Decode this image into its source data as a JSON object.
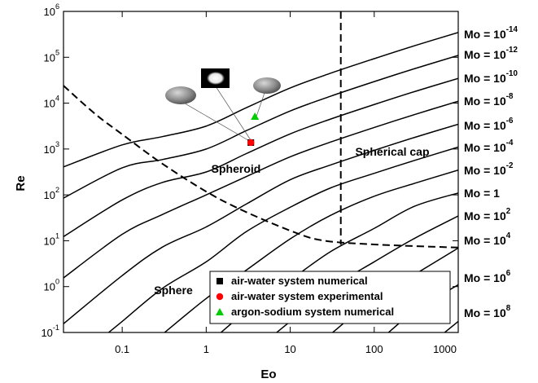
{
  "chart_data": {
    "type": "line",
    "xscale": "log",
    "yscale": "log",
    "x_label": "Eo",
    "y_label": "Re",
    "xlim": [
      0.02,
      1000
    ],
    "ylim": [
      0.1,
      1000000
    ],
    "xticks": [
      0.1,
      1,
      10,
      100,
      1000
    ],
    "yticks": [
      {
        "value": 0.1,
        "label": "10^-1"
      },
      {
        "value": 1,
        "label": "10^0"
      },
      {
        "value": 10,
        "label": "10^1"
      },
      {
        "value": 100,
        "label": "10^2"
      },
      {
        "value": 1000,
        "label": "10^3"
      },
      {
        "value": 10000,
        "label": "10^4"
      },
      {
        "value": 100000,
        "label": "10^5"
      },
      {
        "value": 1000000,
        "label": "10^6"
      }
    ],
    "series": [
      {
        "name": "Mo = 10^-14",
        "color": "#000000",
        "x": [
          0.02,
          0.1,
          0.3,
          1,
          3,
          10,
          30,
          100,
          300,
          1000
        ],
        "values": [
          407,
          1230,
          1860,
          3160,
          7940,
          21400,
          44700,
          93300,
          178000,
          347000
        ]
      },
      {
        "name": "Mo = 10^-12",
        "color": "#000000",
        "x": [
          0.02,
          0.1,
          0.3,
          1,
          3,
          10,
          30,
          100,
          300,
          1000
        ],
        "values": [
          85,
          389,
          589,
          1000,
          2510,
          6760,
          14100,
          29500,
          56200,
          110000
        ]
      },
      {
        "name": "Mo = 10^-10",
        "color": "#000000",
        "x": [
          0.02,
          0.1,
          0.3,
          1,
          3,
          10,
          30,
          100,
          300,
          1000
        ],
        "values": [
          12.3,
          77.6,
          186,
          316,
          794,
          2140,
          4470,
          9330,
          17800,
          34700
        ]
      },
      {
        "name": "Mo = 10^-8",
        "color": "#000000",
        "x": [
          0.02,
          0.1,
          0.3,
          1,
          3,
          10,
          30,
          100,
          300,
          1000
        ],
        "values": [
          1.55,
          13.8,
          37.2,
          100,
          251,
          676,
          1410,
          2950,
          5620,
          11000
        ]
      },
      {
        "name": "Mo = 10^-6",
        "color": "#000000",
        "x": [
          0.02,
          0.1,
          0.3,
          1,
          3,
          10,
          30,
          100,
          300,
          1000
        ],
        "values": [
          0.155,
          1.74,
          7.24,
          20,
          63.1,
          214,
          447,
          933,
          1780,
          3470
        ]
      },
      {
        "name": "Mo = 10^-4",
        "color": "#000000",
        "x": [
          0.069,
          0.1,
          0.3,
          1,
          3,
          10,
          30,
          100,
          300,
          1000
        ],
        "values": [
          0.1,
          0.174,
          0.912,
          3.47,
          15.8,
          53.7,
          141,
          295,
          562,
          1100
        ]
      },
      {
        "name": "Mo = 10^-2",
        "color": "#000000",
        "x": [
          0.32,
          1,
          3,
          10,
          30,
          100,
          300,
          1000
        ],
        "values": [
          0.1,
          0.55,
          2.29,
          11,
          35.5,
          93.3,
          178,
          347
        ]
      },
      {
        "name": "Mo = 1",
        "color": "#000000",
        "x": [
          1.5,
          3,
          10,
          30,
          100,
          300,
          1000
        ],
        "values": [
          0.1,
          0.288,
          1.38,
          5.75,
          18.6,
          56.2,
          110
        ]
      },
      {
        "name": "Mo = 10^2",
        "color": "#000000",
        "x": [
          6.9,
          10,
          30,
          100,
          300,
          1000
        ],
        "values": [
          0.1,
          0.174,
          0.912,
          3.47,
          11.2,
          34.7
        ]
      },
      {
        "name": "Mo = 10^4",
        "color": "#000000",
        "x": [
          32,
          100,
          300,
          1000
        ],
        "values": [
          0.1,
          0.55,
          1.82,
          6.92
        ]
      },
      {
        "name": "Mo = 10^6",
        "color": "#000000",
        "x": [
          148,
          300,
          1000
        ],
        "values": [
          0.1,
          0.288,
          1.1
        ]
      },
      {
        "name": "Mo = 10^8",
        "color": "#000000",
        "x": [
          690,
          1000
        ],
        "values": [
          0.1,
          0.174
        ]
      }
    ],
    "boundaries": [
      {
        "style": "dashed",
        "color": "#000000",
        "x": [
          0.02,
          0.048,
          0.1,
          0.29,
          1,
          2.7,
          10,
          24,
          100,
          1000
        ],
        "values": [
          24000,
          5750,
          2090,
          500,
          118,
          46,
          16.6,
          10.2,
          8.3,
          7.1
        ]
      },
      {
        "style": "dashed",
        "color": "#000000",
        "x": [
          40,
          40
        ],
        "values": [
          1000000,
          8.2
        ]
      }
    ],
    "points": [
      {
        "name": "air-water system numerical",
        "color": "#000000",
        "marker": "square",
        "x": [
          3.4
        ],
        "values": [
          1380
        ]
      },
      {
        "name": "air-water system experimental",
        "color": "#ff0000",
        "marker": "circle",
        "x": [
          3.4
        ],
        "values": [
          1380
        ]
      },
      {
        "name": "argon-sodium system numerical",
        "color": "#00cc00",
        "marker": "triangle",
        "x": [
          3.8
        ],
        "values": [
          5100
        ]
      }
    ],
    "annotations": [
      "Spheroid",
      "Spherical cap",
      "Sphere"
    ],
    "legend": "lower right"
  }
}
